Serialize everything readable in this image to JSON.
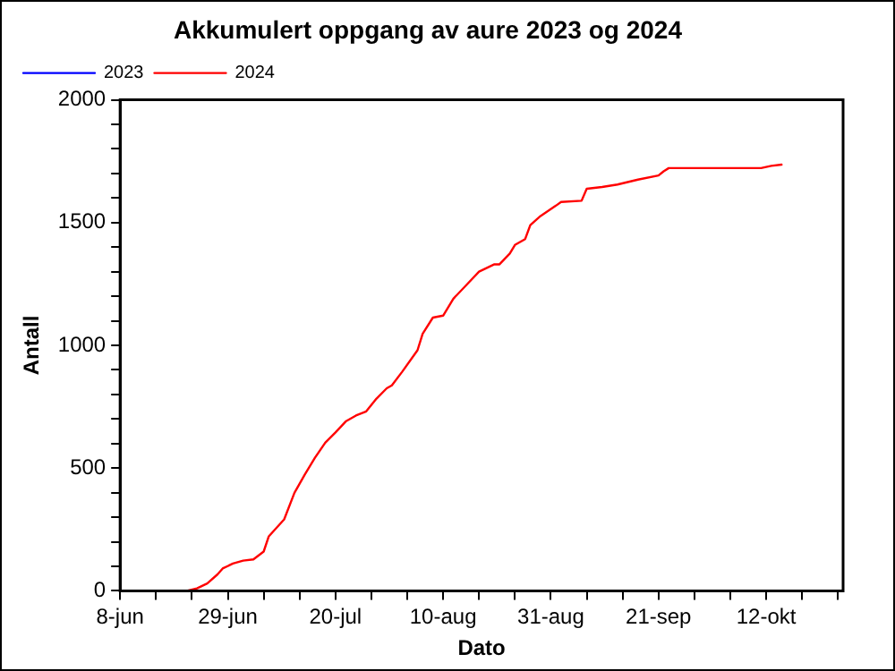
{
  "chart_data": {
    "type": "line",
    "title": "Akkumulert oppgang av aure 2023 og 2024",
    "xlabel": "Dato",
    "ylabel": "Antall",
    "xlim": [
      "2024-06-08",
      "2024-10-27"
    ],
    "xticks": [
      {
        "value": "2024-06-08",
        "label": "8-jun"
      },
      {
        "value": "2024-06-15",
        "label": null
      },
      {
        "value": "2024-06-22",
        "label": null
      },
      {
        "value": "2024-06-29",
        "label": "29-jun"
      },
      {
        "value": "2024-07-06",
        "label": null
      },
      {
        "value": "2024-07-13",
        "label": null
      },
      {
        "value": "2024-07-20",
        "label": "20-jul"
      },
      {
        "value": "2024-07-27",
        "label": null
      },
      {
        "value": "2024-08-03",
        "label": null
      },
      {
        "value": "2024-08-10",
        "label": "10-aug"
      },
      {
        "value": "2024-08-17",
        "label": null
      },
      {
        "value": "2024-08-24",
        "label": null
      },
      {
        "value": "2024-08-31",
        "label": "31-aug"
      },
      {
        "value": "2024-09-07",
        "label": null
      },
      {
        "value": "2024-09-14",
        "label": null
      },
      {
        "value": "2024-09-21",
        "label": "21-sep"
      },
      {
        "value": "2024-09-28",
        "label": null
      },
      {
        "value": "2024-10-05",
        "label": null
      },
      {
        "value": "2024-10-12",
        "label": "12-okt"
      },
      {
        "value": "2024-10-19",
        "label": null
      },
      {
        "value": "2024-10-26",
        "label": null
      }
    ],
    "ylim": [
      0,
      2000
    ],
    "yticks": [
      0,
      {
        "value": 100,
        "label": null
      },
      {
        "value": 200,
        "label": null
      },
      {
        "value": 300,
        "label": null
      },
      {
        "value": 400,
        "label": null
      },
      500,
      {
        "value": 600,
        "label": null
      },
      {
        "value": 700,
        "label": null
      },
      {
        "value": 800,
        "label": null
      },
      {
        "value": 900,
        "label": null
      },
      1000,
      {
        "value": 1100,
        "label": null
      },
      {
        "value": 1200,
        "label": null
      },
      {
        "value": 1300,
        "label": null
      },
      {
        "value": 1400,
        "label": null
      },
      1500,
      {
        "value": 1600,
        "label": null
      },
      {
        "value": 1700,
        "label": null
      },
      {
        "value": 1800,
        "label": null
      },
      {
        "value": 1900,
        "label": null
      },
      2000
    ],
    "grid": false,
    "legend": "top left",
    "marker": "none",
    "line_style": "solid",
    "series": [
      {
        "name": "2023",
        "color": "#0000ff"
      },
      {
        "name": "2024",
        "color": "#ff0000",
        "x": [
          "2024-06-21",
          "2024-06-23",
          "2024-06-25",
          "2024-06-27",
          "2024-06-28",
          "2024-06-30",
          "2024-07-02",
          "2024-07-04",
          "2024-07-06",
          "2024-07-07",
          "2024-07-10",
          "2024-07-12",
          "2024-07-14",
          "2024-07-16",
          "2024-07-18",
          "2024-07-20",
          "2024-07-22",
          "2024-07-24",
          "2024-07-26",
          "2024-07-28",
          "2024-07-30",
          "2024-07-31",
          "2024-08-02",
          "2024-08-05",
          "2024-08-06",
          "2024-08-08",
          "2024-08-10",
          "2024-08-12",
          "2024-08-15",
          "2024-08-17",
          "2024-08-20",
          "2024-08-21",
          "2024-08-23",
          "2024-08-24",
          "2024-08-26",
          "2024-08-27",
          "2024-08-29",
          "2024-09-01",
          "2024-09-02",
          "2024-09-06",
          "2024-09-07",
          "2024-09-10",
          "2024-09-13",
          "2024-09-17",
          "2024-09-21",
          "2024-09-22",
          "2024-09-23",
          "2024-10-11",
          "2024-10-13",
          "2024-10-15"
        ],
        "values": [
          0,
          10,
          30,
          67,
          91,
          111,
          123,
          128,
          160,
          222,
          291,
          399,
          473,
          542,
          603,
          645,
          690,
          714,
          731,
          783,
          825,
          837,
          892,
          980,
          1047,
          1113,
          1121,
          1190,
          1256,
          1300,
          1330,
          1330,
          1374,
          1409,
          1433,
          1490,
          1527,
          1569,
          1584,
          1589,
          1638,
          1645,
          1655,
          1675,
          1692,
          1709,
          1722,
          1722,
          1731,
          1736
        ]
      }
    ]
  }
}
